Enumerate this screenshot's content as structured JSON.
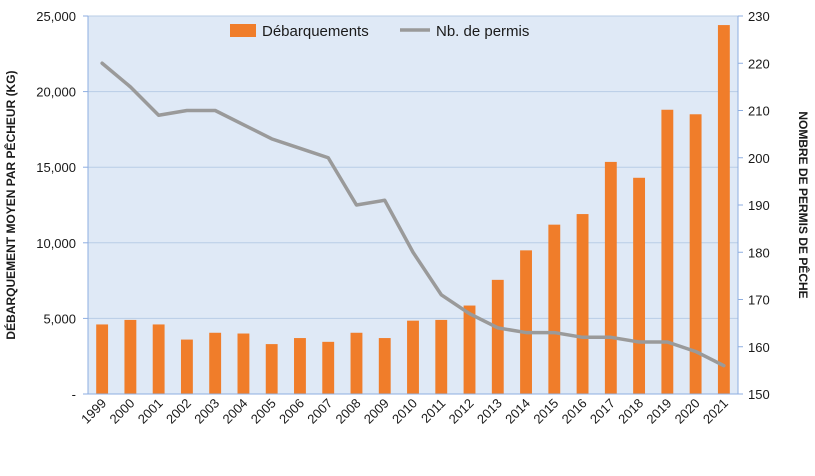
{
  "chart_data": {
    "type": "bar+line",
    "categories": [
      "1999",
      "2000",
      "2001",
      "2002",
      "2003",
      "2004",
      "2005",
      "2006",
      "2007",
      "2008",
      "2009",
      "2010",
      "2011",
      "2012",
      "2013",
      "2014",
      "2015",
      "2016",
      "2017",
      "2018",
      "2019",
      "2020",
      "2021"
    ],
    "series": [
      {
        "name": "Débarquements",
        "type": "bar",
        "axis": "left",
        "color": "#f07d2a",
        "values": [
          4600,
          4900,
          4600,
          3600,
          4050,
          4000,
          3300,
          3700,
          3450,
          4050,
          3700,
          4850,
          4900,
          5850,
          7550,
          9500,
          11200,
          11900,
          15350,
          14300,
          18800,
          18500,
          24400
        ]
      },
      {
        "name": "Nb. de permis",
        "type": "line",
        "axis": "right",
        "color": "#9a9a9a",
        "values": [
          220,
          215,
          209,
          210,
          210,
          207,
          204,
          202,
          200,
          190,
          191,
          180,
          171,
          167,
          164,
          163,
          163,
          162,
          162,
          161,
          161,
          159,
          156
        ]
      }
    ],
    "ylabel": "DÉBARQUEMENT MOYEN PAR PÊCHEUR (KG)",
    "y2label": "NOMBRE DE PERMIS DE PÊCHE",
    "ylim": [
      0,
      25000
    ],
    "y2lim": [
      150,
      230
    ],
    "yticks": [
      "-",
      "5,000",
      "10,000",
      "15,000",
      "20,000",
      "25,000"
    ],
    "y2ticks": [
      "150",
      "160",
      "170",
      "180",
      "190",
      "200",
      "210",
      "220",
      "230"
    ],
    "grid": true,
    "legend": "top-center",
    "plot_background": "#dfe9f6",
    "grid_color": "#b8cde6"
  }
}
